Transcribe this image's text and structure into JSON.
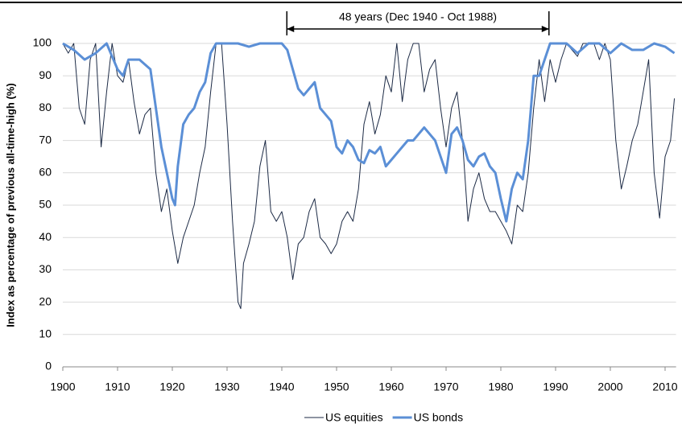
{
  "chart_data": {
    "type": "line",
    "y_axis_label": "Index as percentage of previous all-time-high (%)",
    "annotation": {
      "text": "48 years (Dec 1940 - Oct 1988)",
      "x_start": 1940.92,
      "x_end": 1988.79
    },
    "xlim": [
      1900,
      2012
    ],
    "xticks": [
      1900,
      1910,
      1920,
      1930,
      1940,
      1950,
      1960,
      1970,
      1980,
      1990,
      2000,
      2010
    ],
    "ylim": [
      0,
      100
    ],
    "yticks": [
      0,
      10,
      20,
      30,
      40,
      50,
      60,
      70,
      80,
      90,
      100
    ],
    "grid": true,
    "legend": "bottom",
    "series": [
      {
        "name": "US equities",
        "color": "#1c2a45",
        "width": 1,
        "x": [
          1900,
          1901,
          1902,
          1903,
          1904,
          1905,
          1906,
          1907,
          1908,
          1909,
          1910,
          1911,
          1912,
          1913,
          1914,
          1915,
          1916,
          1917,
          1918,
          1919,
          1920,
          1921,
          1922,
          1923,
          1924,
          1925,
          1926,
          1927,
          1928,
          1929,
          1930,
          1931,
          1932,
          1932.5,
          1933,
          1934,
          1935,
          1936,
          1937,
          1938,
          1939,
          1940,
          1941,
          1942,
          1943,
          1944,
          1945,
          1946,
          1947,
          1948,
          1949,
          1950,
          1951,
          1952,
          1953,
          1954,
          1955,
          1956,
          1957,
          1958,
          1959,
          1960,
          1961,
          1962,
          1963,
          1964,
          1965,
          1966,
          1967,
          1968,
          1969,
          1970,
          1971,
          1972,
          1973,
          1974,
          1975,
          1976,
          1977,
          1978,
          1979,
          1980,
          1981,
          1982,
          1983,
          1984,
          1985,
          1986,
          1987,
          1988,
          1989,
          1990,
          1991,
          1992,
          1993,
          1994,
          1995,
          1996,
          1997,
          1998,
          1999,
          2000,
          2001,
          2002,
          2003,
          2004,
          2005,
          2006,
          2007,
          2008,
          2009,
          2010,
          2011,
          2011.7
        ],
        "values": [
          100,
          97,
          100,
          80,
          75,
          95,
          100,
          68,
          85,
          100,
          90,
          88,
          95,
          82,
          72,
          78,
          80,
          60,
          48,
          55,
          42,
          32,
          40,
          45,
          50,
          60,
          68,
          85,
          100,
          100,
          75,
          45,
          20,
          18,
          32,
          38,
          45,
          62,
          70,
          48,
          45,
          48,
          40,
          27,
          38,
          40,
          48,
          52,
          40,
          38,
          35,
          38,
          45,
          48,
          45,
          55,
          75,
          82,
          72,
          78,
          90,
          85,
          100,
          82,
          95,
          100,
          100,
          85,
          92,
          95,
          80,
          68,
          80,
          85,
          70,
          45,
          55,
          60,
          52,
          48,
          48,
          45,
          42,
          38,
          50,
          48,
          60,
          80,
          95,
          82,
          95,
          88,
          95,
          100,
          98,
          96,
          100,
          100,
          100,
          95,
          100,
          95,
          70,
          55,
          62,
          70,
          75,
          85,
          95,
          60,
          46,
          65,
          70,
          83
        ]
      },
      {
        "name": "US bonds",
        "color": "#5b8fd6",
        "width": 3,
        "x": [
          1900,
          1902,
          1904,
          1906,
          1908,
          1910,
          1911,
          1912,
          1914,
          1916,
          1917,
          1918,
          1919,
          1920,
          1920.5,
          1921,
          1922,
          1923,
          1924,
          1925,
          1926,
          1927,
          1928,
          1930,
          1932,
          1934,
          1936,
          1938,
          1940,
          1941,
          1942,
          1943,
          1944,
          1945,
          1946,
          1947,
          1948,
          1949,
          1950,
          1951,
          1952,
          1953,
          1954,
          1955,
          1956,
          1957,
          1958,
          1959,
          1960,
          1961,
          1962,
          1963,
          1964,
          1965,
          1966,
          1967,
          1968,
          1969,
          1970,
          1971,
          1972,
          1973,
          1974,
          1975,
          1976,
          1977,
          1978,
          1979,
          1980,
          1981,
          1982,
          1983,
          1984,
          1985,
          1986,
          1987,
          1988,
          1989,
          1992,
          1994,
          1996,
          1998,
          2000,
          2002,
          2004,
          2006,
          2008,
          2010,
          2011.7
        ],
        "values": [
          100,
          98,
          95,
          97,
          100,
          92,
          90,
          95,
          95,
          92,
          80,
          68,
          60,
          52,
          50,
          62,
          75,
          78,
          80,
          85,
          88,
          97,
          100,
          100,
          100,
          99,
          100,
          100,
          100,
          98,
          92,
          86,
          84,
          86,
          88,
          80,
          78,
          76,
          68,
          66,
          70,
          68,
          64,
          63,
          67,
          66,
          68,
          62,
          64,
          66,
          68,
          70,
          70,
          72,
          74,
          72,
          70,
          65,
          60,
          72,
          74,
          70,
          64,
          62,
          65,
          66,
          62,
          60,
          52,
          45,
          55,
          60,
          58,
          70,
          90,
          90,
          95,
          100,
          100,
          97,
          100,
          100,
          97,
          100,
          98,
          98,
          100,
          99,
          97
        ]
      }
    ]
  }
}
